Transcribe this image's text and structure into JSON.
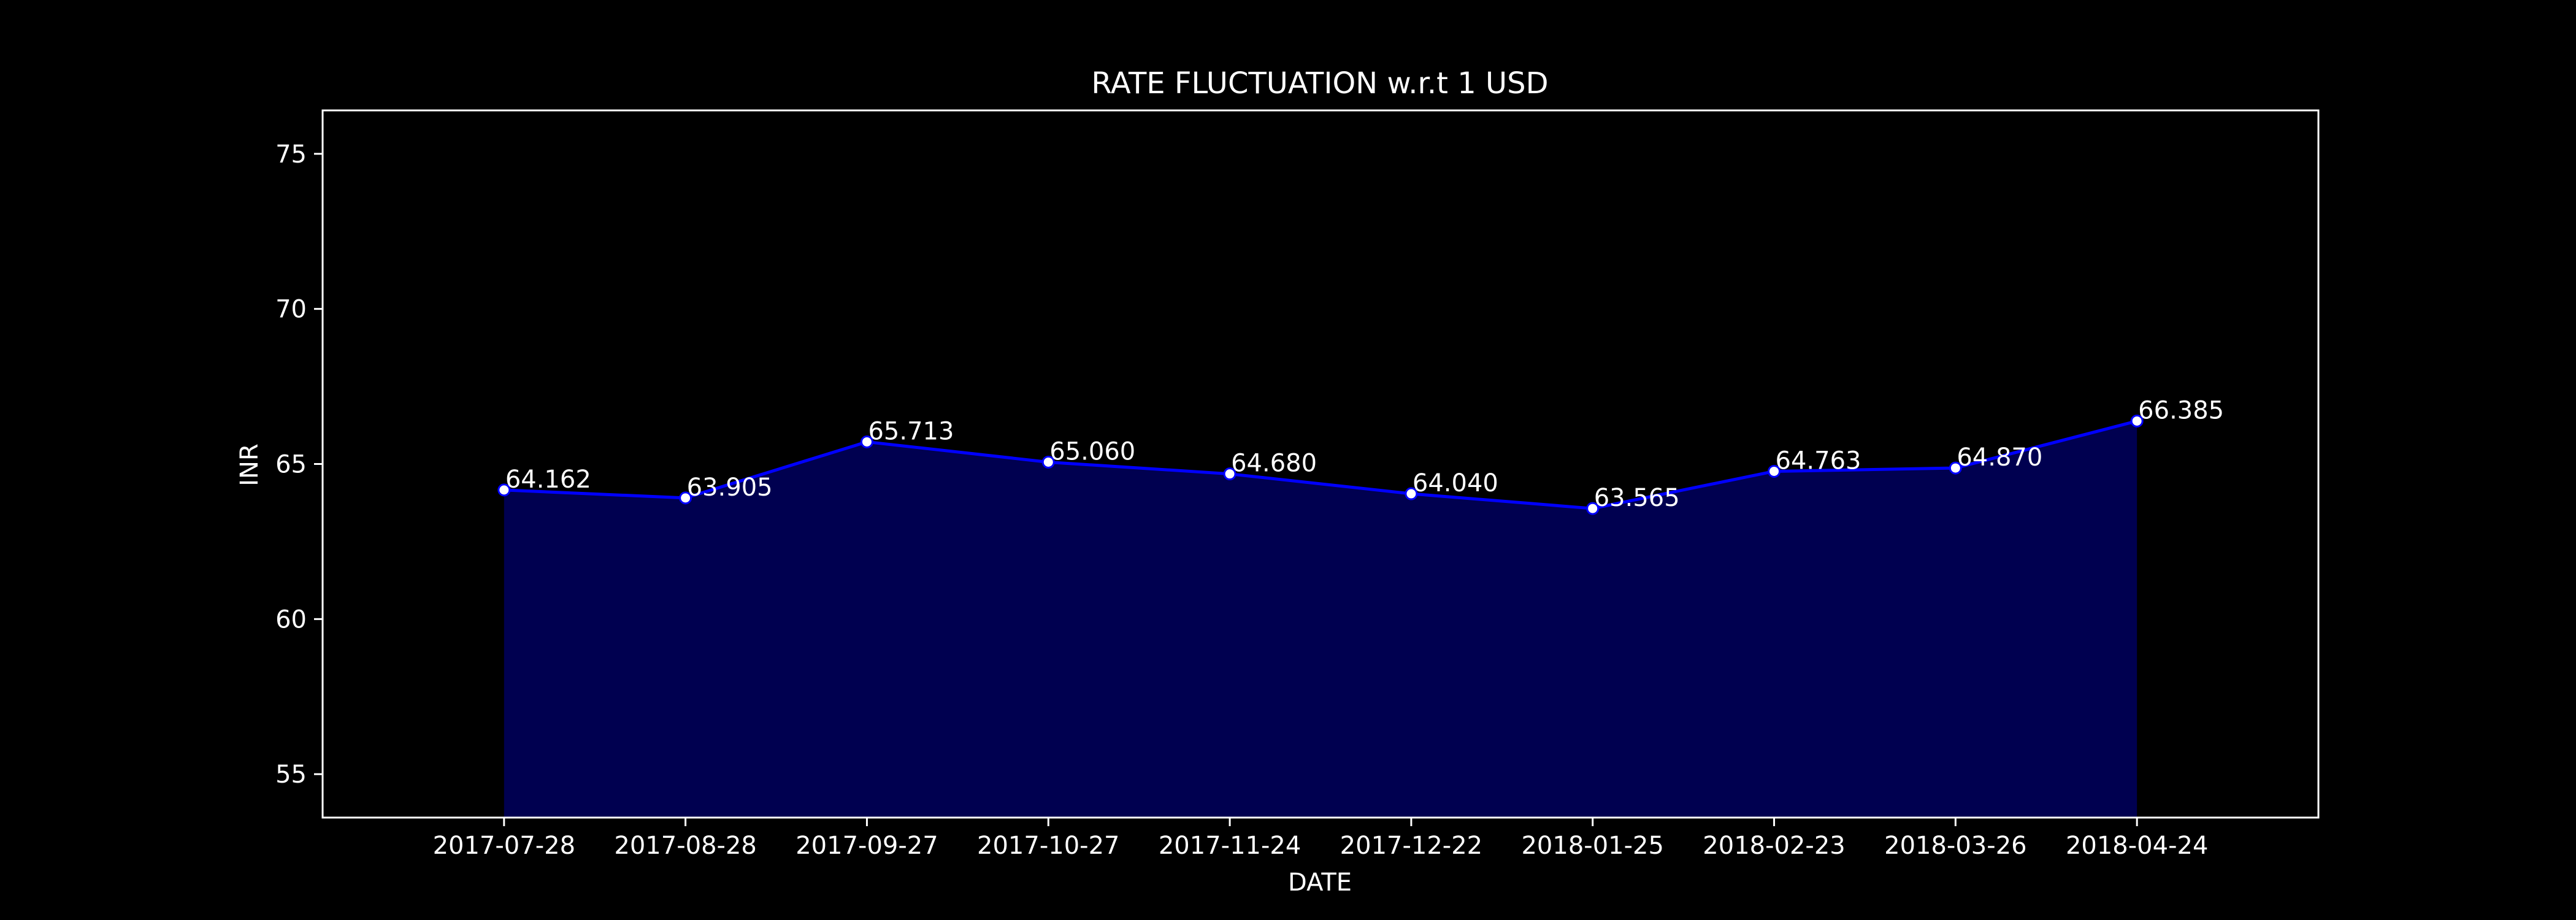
{
  "chart_data": {
    "type": "area",
    "title": "RATE FLUCTUATION w.r.t 1 USD",
    "xlabel": "DATE",
    "ylabel": "INR",
    "categories": [
      "2017-07-28",
      "2017-08-28",
      "2017-09-27",
      "2017-10-27",
      "2017-11-24",
      "2017-12-22",
      "2018-01-25",
      "2018-02-23",
      "2018-03-26",
      "2018-04-24"
    ],
    "values": [
      64.162,
      63.905,
      65.713,
      65.06,
      64.68,
      64.04,
      63.565,
      64.763,
      64.87,
      66.385
    ],
    "data_labels": [
      "64.162",
      "63.905",
      "65.713",
      "65.060",
      "64.680",
      "64.040",
      "63.565",
      "64.763",
      "64.870",
      "66.385"
    ],
    "yticks": [
      55,
      60,
      65,
      70,
      75
    ],
    "ylim": [
      53.6,
      76.4
    ],
    "xlim": [
      -1,
      10
    ],
    "grid": false,
    "legend": "none",
    "colors": {
      "background": "#000000",
      "line": "#0000ff",
      "fill": "#000050",
      "marker": "#ffffff",
      "text": "#ffffff",
      "frame": "#ffffff"
    }
  }
}
